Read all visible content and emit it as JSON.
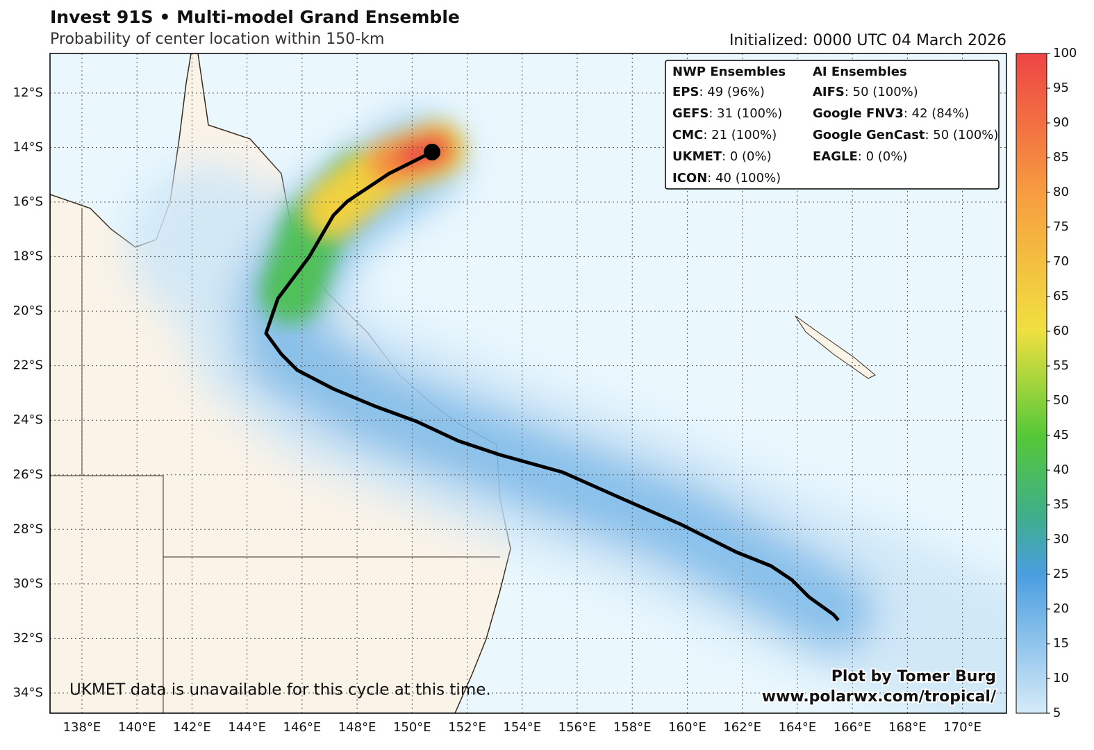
{
  "header": {
    "title": "Invest 91S • Multi-model Grand Ensemble",
    "subtitle": "Probability of center location within 150-km",
    "initialized": "Initialized: 0000 UTC 04 March 2026"
  },
  "map": {
    "lonlim": [
      136.84,
      171.6
    ],
    "latlim": [
      10.55,
      34.74
    ],
    "lon_ticks": [
      {
        "value": 138,
        "label": "138°E"
      },
      {
        "value": 140,
        "label": "140°E"
      },
      {
        "value": 142,
        "label": "142°E"
      },
      {
        "value": 144,
        "label": "144°E"
      },
      {
        "value": 146,
        "label": "146°E"
      },
      {
        "value": 148,
        "label": "148°E"
      },
      {
        "value": 150,
        "label": "150°E"
      },
      {
        "value": 152,
        "label": "152°E"
      },
      {
        "value": 154,
        "label": "154°E"
      },
      {
        "value": 156,
        "label": "156°E"
      },
      {
        "value": 158,
        "label": "158°E"
      },
      {
        "value": 160,
        "label": "160°E"
      },
      {
        "value": 162,
        "label": "162°E"
      },
      {
        "value": 164,
        "label": "164°E"
      },
      {
        "value": 166,
        "label": "166°E"
      },
      {
        "value": 168,
        "label": "168°E"
      },
      {
        "value": 170,
        "label": "170°E"
      }
    ],
    "lat_ticks": [
      {
        "value": 12,
        "label": "12°S"
      },
      {
        "value": 14,
        "label": "14°S"
      },
      {
        "value": 16,
        "label": "16°S"
      },
      {
        "value": 18,
        "label": "18°S"
      },
      {
        "value": 20,
        "label": "20°S"
      },
      {
        "value": 22,
        "label": "22°S"
      },
      {
        "value": 24,
        "label": "24°S"
      },
      {
        "value": 26,
        "label": "26°S"
      },
      {
        "value": 28,
        "label": "28°S"
      },
      {
        "value": 30,
        "label": "30°S"
      },
      {
        "value": 32,
        "label": "32°S"
      },
      {
        "value": 34,
        "label": "34°S"
      }
    ]
  },
  "colorbar": {
    "range": [
      5,
      100
    ],
    "ticks": [
      5,
      10,
      15,
      20,
      25,
      30,
      35,
      40,
      45,
      50,
      55,
      60,
      65,
      70,
      75,
      80,
      85,
      90,
      95,
      100
    ]
  },
  "legend": {
    "nwp": {
      "heading": "NWP Ensembles",
      "entries": [
        {
          "name": "EPS",
          "detail": ": 49 (96%)"
        },
        {
          "name": "GEFS",
          "detail": ": 31 (100%)"
        },
        {
          "name": "CMC",
          "detail": ": 21 (100%)"
        },
        {
          "name": "UKMET",
          "detail": ": 0 (0%)"
        },
        {
          "name": "ICON",
          "detail": ": 40 (100%)"
        }
      ]
    },
    "ai": {
      "heading": "AI Ensembles",
      "entries": [
        {
          "name": "AIFS",
          "detail": ": 50 (100%)"
        },
        {
          "name": "Google FNV3",
          "detail": ": 42 (84%)"
        },
        {
          "name": "Google GenCast",
          "detail": ": 50 (100%)"
        },
        {
          "name": "EAGLE",
          "detail": ": 0 (0%)"
        }
      ]
    }
  },
  "notes": {
    "unavailable": "UKMET data is unavailable for this cycle at this time."
  },
  "credit": {
    "line1": "Plot by Tomer Burg",
    "line2": "www.polarwx.com/tropical/"
  }
}
